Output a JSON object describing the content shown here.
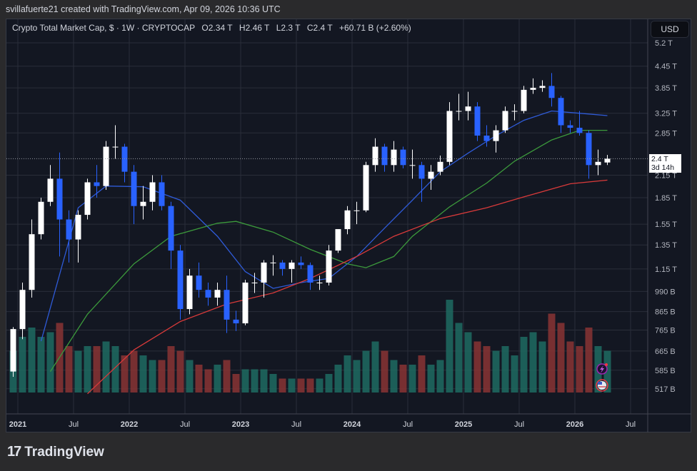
{
  "credit": "svillafuerte21 created with TradingView.com, Apr 09, 2026 10:36 UTC",
  "legend": {
    "symbol": "Crypto Total Market Cap, $ · 1W · CRYPTOCAP",
    "open": "O2.34 T",
    "high": "H2.46 T",
    "low": "L2.3 T",
    "close": "C2.4 T",
    "change": "+60.71 B (+2.60%)"
  },
  "currency_button": "USD",
  "price_label": {
    "value": "2.4 T",
    "countdown": "3d 14h"
  },
  "footer": {
    "logo_text": "TradingView"
  },
  "icons": [
    "lightning-event-icon",
    "us-flag-event-icon"
  ],
  "colors": {
    "up_candle": "#ffffff",
    "down_candle": "#2962ff",
    "ma_blue": "#2f5bd8",
    "ma_green": "#3c9a3c",
    "ma_red": "#d83a3a",
    "vol_up": "#1f6b62",
    "vol_down": "#8a3434",
    "background": "#131722"
  },
  "chart_data": {
    "type": "candlestick",
    "title": "Crypto Total Market Cap, $ · 1W · CRYPTOCAP",
    "y_scale": "log",
    "ylim": [
      0.5,
      5.6
    ],
    "y_unit": "T",
    "y_ticks": [
      {
        "v": 5.2,
        "label": "5.2 T"
      },
      {
        "v": 4.45,
        "label": "4.45 T"
      },
      {
        "v": 3.85,
        "label": "3.85 T"
      },
      {
        "v": 3.25,
        "label": "3.25 T"
      },
      {
        "v": 2.85,
        "label": "2.85 T"
      },
      {
        "v": 2.15,
        "label": "2.15 T"
      },
      {
        "v": 1.85,
        "label": "1.85 T"
      },
      {
        "v": 1.55,
        "label": "1.55 T"
      },
      {
        "v": 1.35,
        "label": "1.35 T"
      },
      {
        "v": 1.15,
        "label": "1.15 T"
      },
      {
        "v": 0.99,
        "label": "990 B"
      },
      {
        "v": 0.865,
        "label": "865 B"
      },
      {
        "v": 0.765,
        "label": "765 B"
      },
      {
        "v": 0.665,
        "label": "665 B"
      },
      {
        "v": 0.585,
        "label": "585 B"
      },
      {
        "v": 0.517,
        "label": "517 B"
      }
    ],
    "x_ticks": [
      {
        "t": 0,
        "label": "2021",
        "bold": true
      },
      {
        "t": 0.5,
        "label": "Jul"
      },
      {
        "t": 1,
        "label": "2022",
        "bold": true
      },
      {
        "t": 1.5,
        "label": "Jul"
      },
      {
        "t": 2,
        "label": "2023",
        "bold": true
      },
      {
        "t": 2.5,
        "label": "Jul"
      },
      {
        "t": 3,
        "label": "2024",
        "bold": true
      },
      {
        "t": 3.5,
        "label": "Jul"
      },
      {
        "t": 4,
        "label": "2025",
        "bold": true
      },
      {
        "t": 4.5,
        "label": "Jul"
      },
      {
        "t": 5,
        "label": "2026",
        "bold": true
      },
      {
        "t": 5.5,
        "label": "Jul"
      }
    ],
    "last_price": 2.4,
    "candles_start": "2020-12",
    "candles_ohlc": [
      [
        0.58,
        0.78,
        0.56,
        0.77
      ],
      [
        0.77,
        1.05,
        0.72,
        1.0
      ],
      [
        1.0,
        1.6,
        0.95,
        1.45
      ],
      [
        1.45,
        1.85,
        1.4,
        1.8
      ],
      [
        1.8,
        2.3,
        1.75,
        2.1
      ],
      [
        2.1,
        2.5,
        1.25,
        1.6
      ],
      [
        1.6,
        1.7,
        1.2,
        1.4
      ],
      [
        1.4,
        1.7,
        1.2,
        1.65
      ],
      [
        1.65,
        2.1,
        1.6,
        2.05
      ],
      [
        2.05,
        2.3,
        1.85,
        2.0
      ],
      [
        2.0,
        2.7,
        1.95,
        2.6
      ],
      [
        2.6,
        3.0,
        2.4,
        2.6
      ],
      [
        2.6,
        2.65,
        2.05,
        2.2
      ],
      [
        2.2,
        2.3,
        1.55,
        1.75
      ],
      [
        1.75,
        2.0,
        1.6,
        1.8
      ],
      [
        1.8,
        2.15,
        1.7,
        2.05
      ],
      [
        2.05,
        2.15,
        1.7,
        1.75
      ],
      [
        1.75,
        1.8,
        1.15,
        1.3
      ],
      [
        1.3,
        1.35,
        0.82,
        0.88
      ],
      [
        0.88,
        1.15,
        0.85,
        1.1
      ],
      [
        1.1,
        1.2,
        0.95,
        1.0
      ],
      [
        1.0,
        1.05,
        0.9,
        0.95
      ],
      [
        0.95,
        1.05,
        0.9,
        1.0
      ],
      [
        1.0,
        1.1,
        0.75,
        0.82
      ],
      [
        0.82,
        0.87,
        0.76,
        0.8
      ],
      [
        0.8,
        1.07,
        0.79,
        1.05
      ],
      [
        1.05,
        1.12,
        0.98,
        1.05
      ],
      [
        1.05,
        1.22,
        0.95,
        1.2
      ],
      [
        1.2,
        1.26,
        1.1,
        1.2
      ],
      [
        1.2,
        1.22,
        1.1,
        1.15
      ],
      [
        1.15,
        1.22,
        1.05,
        1.2
      ],
      [
        1.2,
        1.25,
        1.15,
        1.18
      ],
      [
        1.18,
        1.2,
        1.0,
        1.05
      ],
      [
        1.05,
        1.1,
        1.0,
        1.05
      ],
      [
        1.05,
        1.35,
        1.03,
        1.3
      ],
      [
        1.3,
        1.5,
        1.28,
        1.5
      ],
      [
        1.5,
        1.75,
        1.45,
        1.7
      ],
      [
        1.7,
        1.8,
        1.55,
        1.7
      ],
      [
        1.7,
        2.35,
        1.68,
        2.3
      ],
      [
        2.3,
        2.75,
        2.2,
        2.6
      ],
      [
        2.6,
        2.65,
        2.2,
        2.3
      ],
      [
        2.3,
        2.7,
        2.2,
        2.55
      ],
      [
        2.55,
        2.6,
        2.25,
        2.3
      ],
      [
        2.3,
        2.55,
        2.1,
        2.3
      ],
      [
        2.3,
        2.35,
        1.8,
        2.1
      ],
      [
        2.1,
        2.3,
        1.95,
        2.2
      ],
      [
        2.2,
        2.45,
        2.15,
        2.35
      ],
      [
        2.35,
        3.5,
        2.3,
        3.3
      ],
      [
        3.3,
        3.7,
        3.1,
        3.3
      ],
      [
        3.3,
        3.75,
        3.1,
        3.4
      ],
      [
        3.4,
        3.5,
        2.7,
        2.8
      ],
      [
        2.8,
        3.0,
        2.6,
        2.7
      ],
      [
        2.7,
        3.0,
        2.5,
        2.9
      ],
      [
        2.9,
        3.4,
        2.85,
        3.3
      ],
      [
        3.3,
        3.45,
        3.1,
        3.3
      ],
      [
        3.3,
        3.9,
        3.25,
        3.8
      ],
      [
        3.8,
        4.1,
        3.7,
        3.85
      ],
      [
        3.85,
        4.05,
        3.75,
        3.9
      ],
      [
        3.9,
        4.25,
        3.4,
        3.6
      ],
      [
        3.6,
        3.65,
        2.85,
        3.0
      ],
      [
        3.0,
        3.1,
        2.85,
        2.95
      ],
      [
        2.95,
        3.3,
        2.8,
        2.85
      ],
      [
        2.85,
        2.9,
        2.1,
        2.3
      ],
      [
        2.3,
        2.55,
        2.15,
        2.35
      ],
      [
        2.34,
        2.46,
        2.3,
        2.4
      ]
    ],
    "volume_relative": [
      0.45,
      0.6,
      0.7,
      0.6,
      0.65,
      0.75,
      0.5,
      0.45,
      0.5,
      0.5,
      0.55,
      0.5,
      0.4,
      0.45,
      0.4,
      0.35,
      0.35,
      0.5,
      0.45,
      0.35,
      0.3,
      0.25,
      0.3,
      0.35,
      0.2,
      0.25,
      0.25,
      0.25,
      0.2,
      0.15,
      0.15,
      0.15,
      0.15,
      0.15,
      0.2,
      0.3,
      0.4,
      0.35,
      0.45,
      0.55,
      0.45,
      0.35,
      0.3,
      0.3,
      0.4,
      0.3,
      0.35,
      1.0,
      0.75,
      0.65,
      0.55,
      0.5,
      0.45,
      0.5,
      0.4,
      0.6,
      0.65,
      0.55,
      0.85,
      0.75,
      0.55,
      0.5,
      0.7,
      0.5,
      0.45
    ],
    "moving_averages": [
      {
        "color": "ma_blue",
        "points": [
          [
            "2021-03",
            0.71
          ],
          [
            "2021-07",
            1.73
          ],
          [
            "2021-10",
            2.0
          ],
          [
            "2022-02",
            1.99
          ],
          [
            "2022-06",
            1.82
          ],
          [
            "2022-10",
            1.43
          ],
          [
            "2023-01",
            1.13
          ],
          [
            "2023-04",
            1.01
          ],
          [
            "2023-07",
            1.05
          ],
          [
            "2023-10",
            1.08
          ],
          [
            "2024-01",
            1.25
          ],
          [
            "2024-04",
            1.51
          ],
          [
            "2024-07",
            1.82
          ],
          [
            "2024-10",
            2.2
          ],
          [
            "2025-01",
            2.49
          ],
          [
            "2025-04",
            2.8
          ],
          [
            "2025-07",
            3.1
          ],
          [
            "2025-10",
            3.3
          ],
          [
            "2026-01",
            3.25
          ],
          [
            "2026-04",
            3.2
          ]
        ]
      },
      {
        "color": "ma_green",
        "points": [
          [
            "2021-04",
            0.58
          ],
          [
            "2021-08",
            0.85
          ],
          [
            "2022-01",
            1.19
          ],
          [
            "2022-05",
            1.43
          ],
          [
            "2022-10",
            1.56
          ],
          [
            "2022-12",
            1.58
          ],
          [
            "2023-04",
            1.47
          ],
          [
            "2023-08",
            1.31
          ],
          [
            "2023-12",
            1.19
          ],
          [
            "2024-02",
            1.16
          ],
          [
            "2024-05",
            1.25
          ],
          [
            "2024-07",
            1.43
          ],
          [
            "2024-11",
            1.74
          ],
          [
            "2025-03",
            2.04
          ],
          [
            "2025-06",
            2.36
          ],
          [
            "2025-10",
            2.72
          ],
          [
            "2026-01",
            2.9
          ],
          [
            "2026-04",
            2.9
          ]
        ]
      },
      {
        "color": "ma_red",
        "points": [
          [
            "2021-08",
            0.5
          ],
          [
            "2022-01",
            0.67
          ],
          [
            "2022-06",
            0.81
          ],
          [
            "2022-11",
            0.91
          ],
          [
            "2023-04",
            0.98
          ],
          [
            "2023-08",
            1.08
          ],
          [
            "2024-01",
            1.25
          ],
          [
            "2024-05",
            1.43
          ],
          [
            "2024-10",
            1.61
          ],
          [
            "2025-03",
            1.73
          ],
          [
            "2025-07",
            1.86
          ],
          [
            "2025-12",
            2.03
          ],
          [
            "2026-04",
            2.08
          ]
        ]
      }
    ]
  }
}
